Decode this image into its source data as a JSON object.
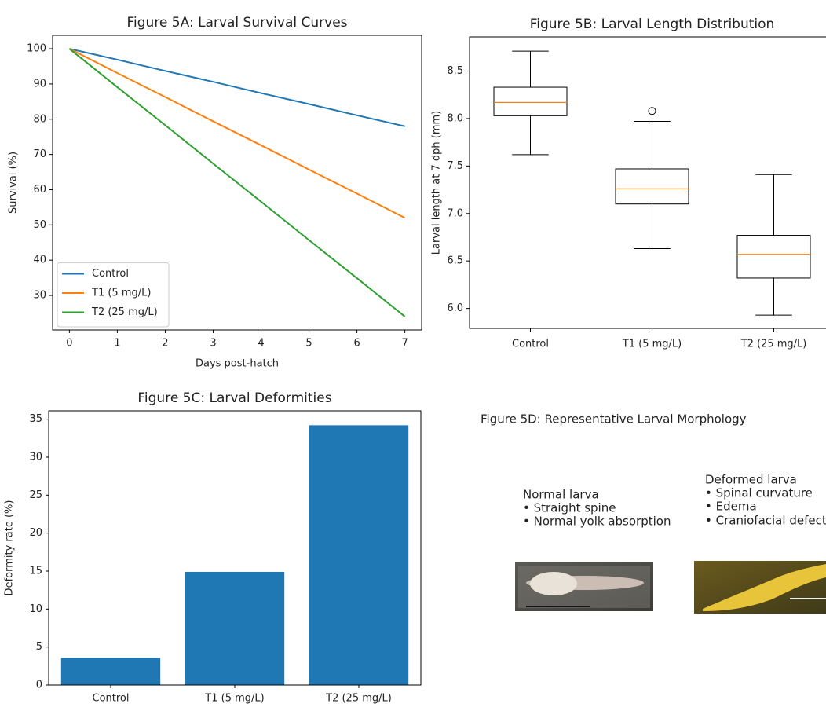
{
  "chart_data": [
    {
      "type": "line",
      "title": "Figure 5A: Larval Survival Curves",
      "xlabel": "Days post-hatch",
      "ylabel": "Survival (%)",
      "x": [
        0,
        1,
        2,
        3,
        4,
        5,
        6,
        7
      ],
      "series": [
        {
          "name": "Control",
          "color": "#1f77b4",
          "values": [
            100,
            96.9,
            93.7,
            90.6,
            87.4,
            84.3,
            81.1,
            78
          ]
        },
        {
          "name": "T1 (5 mg/L)",
          "color": "#ff7f0e",
          "values": [
            100,
            93.1,
            86.3,
            79.4,
            72.6,
            65.7,
            58.9,
            52
          ]
        },
        {
          "name": "T2 (25 mg/L)",
          "color": "#2ca02c",
          "values": [
            100,
            89.1,
            78.3,
            67.4,
            56.6,
            45.7,
            34.9,
            24
          ]
        }
      ],
      "xlim": [
        -0.35,
        7.35
      ],
      "xticks": [
        0,
        1,
        2,
        3,
        4,
        5,
        6,
        7
      ],
      "ylim": [
        20.2,
        103.8
      ],
      "yticks": [
        30,
        40,
        50,
        60,
        70,
        80,
        90,
        100
      ],
      "legend": "lower left"
    },
    {
      "type": "box",
      "title": "Figure 5B: Larval Length Distribution",
      "ylabel": "Larval length at 7 dph (mm)",
      "categories": [
        "Control",
        "T1 (5 mg/L)",
        "T2 (25 mg/L)"
      ],
      "boxes": [
        {
          "whislo": 7.62,
          "q1": 8.03,
          "med": 8.17,
          "q3": 8.33,
          "whishi": 8.71,
          "fliers": []
        },
        {
          "whislo": 6.63,
          "q1": 7.1,
          "med": 7.26,
          "q3": 7.47,
          "whishi": 7.97,
          "fliers": [
            8.08
          ]
        },
        {
          "whislo": 5.93,
          "q1": 6.32,
          "med": 6.57,
          "q3": 6.77,
          "whishi": 7.41,
          "fliers": []
        }
      ],
      "color": "#000000",
      "median_color": "#ff7f0e",
      "ylim": [
        5.79,
        8.86
      ],
      "yticks": [
        {
          "value": 6,
          "label": "6.0"
        },
        6.5,
        {
          "value": 7,
          "label": "7.0"
        },
        7.5,
        {
          "value": 8,
          "label": "8.0"
        },
        8.5
      ]
    },
    {
      "type": "bar",
      "title": "Figure 5C: Larval Deformities",
      "ylabel": "Deformity rate (%)",
      "categories": [
        "Control",
        "T1 (5 mg/L)",
        "T2 (25 mg/L)"
      ],
      "values": [
        3.6,
        14.9,
        34.2
      ],
      "color": "#1f77b4",
      "ylim": [
        0,
        36.1
      ],
      "yticks": [
        0,
        5,
        10,
        15,
        20,
        25,
        30,
        35
      ]
    }
  ],
  "panel_d": {
    "title": "Figure 5D: Representative Larval Morphology",
    "normal": {
      "heading": "Normal larva",
      "points": [
        "• Straight spine",
        "• Normal yolk absorption"
      ]
    },
    "deformed": {
      "heading": "Deformed larva",
      "points": [
        "• Spinal curvature",
        "• Edema",
        "• Craniofacial defect"
      ]
    }
  }
}
